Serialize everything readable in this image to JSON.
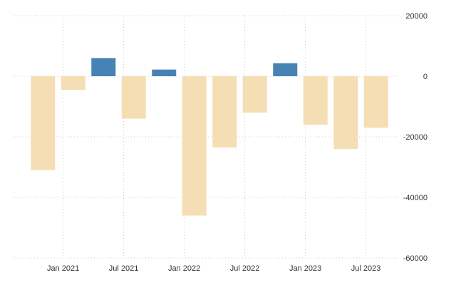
{
  "chart_data": {
    "type": "bar",
    "title": "",
    "xlabel": "",
    "ylabel": "",
    "ylim": [
      -60000,
      20000
    ],
    "y_ticks": [
      20000,
      0,
      -20000,
      -40000,
      -60000
    ],
    "y_tick_labels": [
      "20000",
      "0",
      "-20000",
      "-40000",
      "-60000"
    ],
    "x_tick_labels": [
      "Jan 2021",
      "Jul 2021",
      "Jan 2022",
      "Jul 2022",
      "Jan 2023",
      "Jul 2023"
    ],
    "x_tick_categories": [
      "Jan 2021",
      "Jul 2021",
      "Jan 2022",
      "Jul 2022",
      "Jan 2023",
      "Jul 2023"
    ],
    "categories": [
      "Nov 2020",
      "Feb 2021",
      "May 2021",
      "Aug 2021",
      "Nov 2021",
      "Feb 2022",
      "May 2022",
      "Aug 2022",
      "Nov 2022",
      "Feb 2023",
      "May 2023",
      "Aug 2023"
    ],
    "values": [
      -31000,
      -4500,
      6000,
      -14000,
      2200,
      -46000,
      -23500,
      -12000,
      4300,
      -16000,
      -24000,
      -17000
    ],
    "grid": true,
    "legend": "none",
    "colors": {
      "positive": "#4682b4",
      "negative": "#f5deb3",
      "grid": "#cccccc",
      "text": "#333333"
    }
  }
}
